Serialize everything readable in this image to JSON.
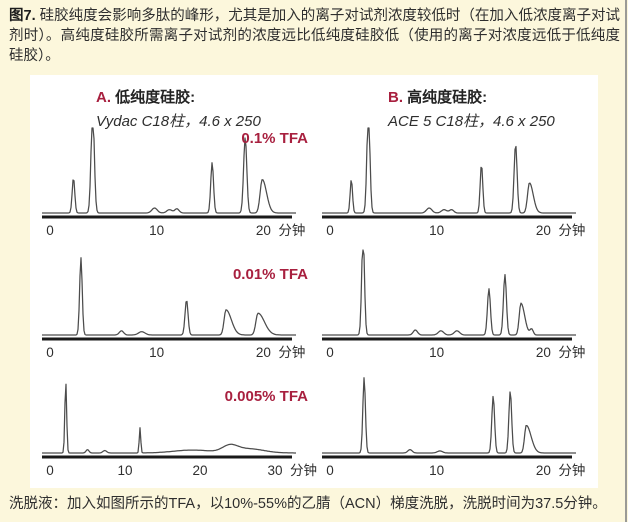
{
  "page": {
    "caption_prefix": "图7.",
    "caption_text": " 硅胶纯度会影响多肽的峰形，尤其是加入的离子对试剂浓度较低时（在加入低浓度离子对试剂时）。高纯度硅胶所需离子对试剂的浓度远比低纯度硅胶低（使用的离子对浓度远低于低纯度硅胶）。",
    "footer": "洗脱液：加入如图所示的TFA，以10%-55%的乙腈（ACN）梯度洗脱，洗脱时间为37.5分钟。"
  },
  "colors": {
    "background": "#fcf7dc",
    "panel": "#ffffff",
    "accent_red": "#a8203f",
    "trace": "#4c4c4c",
    "axis": "#1a1a1a",
    "tick_text": "#2f2f2f"
  },
  "columns": [
    {
      "prefix": "A.",
      "title": " 低纯度硅胶:",
      "subtitle": "Vydac C18柱，4.6 x 250"
    },
    {
      "prefix": "B.",
      "title": " 高纯度硅胶:",
      "subtitle": "ACE 5 C18柱，4.6 x 250"
    }
  ],
  "chart_data": [
    {
      "type": "line",
      "column": "A",
      "row": 0,
      "tfa_label": "0.1% TFA",
      "xlabel": "分钟",
      "x_ticks": [
        0,
        10,
        20
      ],
      "x_max": 22.5,
      "x_unit": "分钟",
      "ylabel": "",
      "grid": false,
      "clipped_peak": true,
      "peaks": [
        {
          "t": 2.2,
          "h": 0.42,
          "w": 0.12
        },
        {
          "t": 4.0,
          "h": 1.25,
          "w": 0.15
        },
        {
          "t": 9.8,
          "h": 0.06,
          "w": 0.25
        },
        {
          "t": 11.2,
          "h": 0.04,
          "w": 0.25
        },
        {
          "t": 11.9,
          "h": 0.05,
          "w": 0.2
        },
        {
          "t": 15.2,
          "h": 0.6,
          "w": 0.13
        },
        {
          "t": 18.3,
          "h": 0.9,
          "w": 0.15
        },
        {
          "t": 19.9,
          "h": 0.4,
          "w": 0.2,
          "wr": 0.4
        }
      ]
    },
    {
      "type": "line",
      "column": "B",
      "row": 0,
      "tfa_label": "",
      "xlabel": "分钟",
      "x_ticks": [
        0,
        10,
        20
      ],
      "x_max": 22.5,
      "x_unit": "分钟",
      "ylabel": "",
      "grid": false,
      "clipped_peak": true,
      "peaks": [
        {
          "t": 2.0,
          "h": 0.4,
          "w": 0.11
        },
        {
          "t": 3.6,
          "h": 1.25,
          "w": 0.14
        },
        {
          "t": 9.3,
          "h": 0.06,
          "w": 0.25
        },
        {
          "t": 10.7,
          "h": 0.04,
          "w": 0.25
        },
        {
          "t": 11.4,
          "h": 0.04,
          "w": 0.2
        },
        {
          "t": 14.2,
          "h": 0.58,
          "w": 0.12
        },
        {
          "t": 17.4,
          "h": 0.82,
          "w": 0.14
        },
        {
          "t": 18.7,
          "h": 0.36,
          "w": 0.18,
          "wr": 0.35
        }
      ]
    },
    {
      "type": "line",
      "column": "A",
      "row": 1,
      "tfa_label": "0.01% TFA",
      "xlabel": "分钟",
      "x_ticks": [
        0,
        10,
        20
      ],
      "x_max": 22.5,
      "x_unit": "分钟",
      "ylabel": "",
      "grid": false,
      "clipped_peak": false,
      "peaks": [
        {
          "t": 2.9,
          "h": 0.92,
          "w": 0.12
        },
        {
          "t": 6.7,
          "h": 0.05,
          "w": 0.2
        },
        {
          "t": 8.6,
          "h": 0.04,
          "w": 0.3
        },
        {
          "t": 12.8,
          "h": 0.42,
          "w": 0.14
        },
        {
          "t": 16.5,
          "h": 0.3,
          "w": 0.18,
          "wr": 0.5
        },
        {
          "t": 19.5,
          "h": 0.26,
          "w": 0.2,
          "wr": 0.6
        }
      ]
    },
    {
      "type": "line",
      "column": "B",
      "row": 1,
      "tfa_label": "",
      "xlabel": "分钟",
      "x_ticks": [
        0,
        10,
        20
      ],
      "x_max": 22.5,
      "x_unit": "分钟",
      "ylabel": "",
      "grid": false,
      "clipped_peak": true,
      "peaks": [
        {
          "t": 3.1,
          "h": 1.2,
          "w": 0.13
        },
        {
          "t": 8.0,
          "h": 0.06,
          "w": 0.2
        },
        {
          "t": 10.4,
          "h": 0.05,
          "w": 0.25
        },
        {
          "t": 11.9,
          "h": 0.05,
          "w": 0.25
        },
        {
          "t": 14.9,
          "h": 0.55,
          "w": 0.14
        },
        {
          "t": 16.4,
          "h": 0.72,
          "w": 0.14
        },
        {
          "t": 17.9,
          "h": 0.38,
          "w": 0.16,
          "wr": 0.35
        },
        {
          "t": 18.9,
          "h": 0.07,
          "w": 0.15
        }
      ]
    },
    {
      "type": "line",
      "column": "A",
      "row": 2,
      "tfa_label": "0.005% TFA",
      "xlabel": "分钟",
      "x_ticks": [
        0,
        10,
        20,
        30
      ],
      "x_max": 32,
      "x_unit": "分钟",
      "ylabel": "",
      "grid": false,
      "clipped_peak": false,
      "peaks": [
        {
          "t": 2.1,
          "h": 0.85,
          "w": 0.12
        },
        {
          "t": 5.0,
          "h": 0.04,
          "w": 0.2
        },
        {
          "t": 7.3,
          "h": 0.03,
          "w": 0.25
        },
        {
          "t": 12.0,
          "h": 0.3,
          "w": 0.1
        },
        {
          "t": 19.0,
          "h": 0.035,
          "w": 2.5
        },
        {
          "t": 24.0,
          "h": 0.075,
          "w": 1.0
        },
        {
          "t": 26.5,
          "h": 0.05,
          "w": 2.0
        }
      ]
    },
    {
      "type": "line",
      "column": "B",
      "row": 2,
      "tfa_label": "",
      "xlabel": "分钟",
      "x_ticks": [
        0,
        10,
        20
      ],
      "x_max": 22.5,
      "x_unit": "分钟",
      "ylabel": "",
      "grid": false,
      "clipped_peak": false,
      "peaks": [
        {
          "t": 3.2,
          "h": 0.9,
          "w": 0.12
        },
        {
          "t": 7.5,
          "h": 0.04,
          "w": 0.2
        },
        {
          "t": 10.3,
          "h": 0.025,
          "w": 0.25
        },
        {
          "t": 15.3,
          "h": 0.68,
          "w": 0.13
        },
        {
          "t": 16.9,
          "h": 0.74,
          "w": 0.13
        },
        {
          "t": 18.4,
          "h": 0.33,
          "w": 0.16,
          "wr": 0.45
        }
      ]
    }
  ]
}
